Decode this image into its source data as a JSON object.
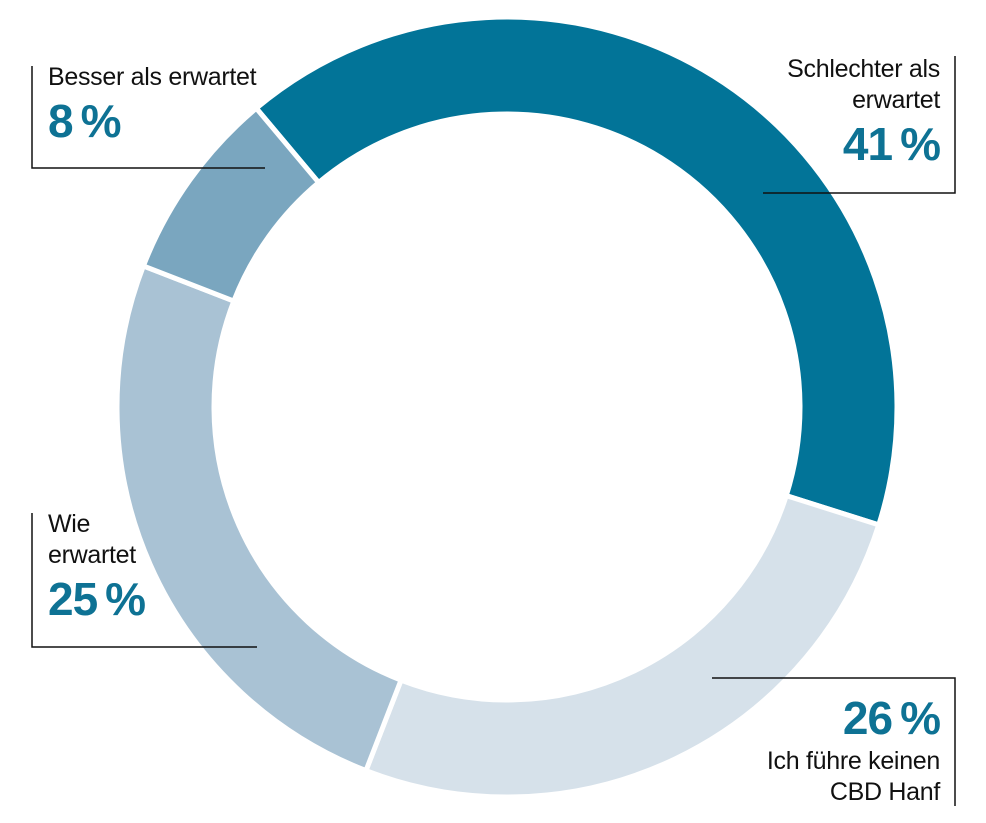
{
  "chart_data": {
    "type": "donut",
    "unit": "%",
    "slices": [
      {
        "label": "Schlechter als erwartet",
        "label_lines": [
          "Schlechter als",
          "erwartet"
        ],
        "value": 41,
        "color": "#027498"
      },
      {
        "label": "Ich führe keinen CBD Hanf",
        "label_lines": [
          "Ich führe keinen",
          "CBD Hanf"
        ],
        "value": 26,
        "color": "#d6e1ea"
      },
      {
        "label": "Wie erwartet",
        "label_lines": [
          "Wie",
          "erwartet"
        ],
        "value": 25,
        "color": "#a9c2d4"
      },
      {
        "label": "Besser als erwartet",
        "label_lines": [
          "Besser als erwartet"
        ],
        "value": 8,
        "color": "#7aa6bf"
      }
    ],
    "start_angle_deg": -40,
    "direction": "clockwise",
    "value_color": "#0e7294",
    "callout_line_color": "#111111"
  }
}
